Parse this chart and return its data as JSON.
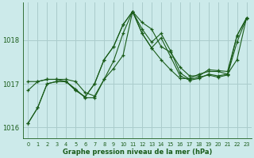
{
  "xlabel": "Graphe pression niveau de la mer (hPa)",
  "bg_color": "#cceaea",
  "grid_color": "#aacccc",
  "line_color": "#1a5c1a",
  "ylim": [
    1015.75,
    1018.85
  ],
  "yticks": [
    1016,
    1017,
    1018
  ],
  "xlim": [
    -0.5,
    23.5
  ],
  "xticks": [
    0,
    1,
    2,
    3,
    4,
    5,
    6,
    7,
    8,
    9,
    10,
    11,
    12,
    13,
    14,
    15,
    16,
    17,
    18,
    19,
    20,
    21,
    22,
    23
  ],
  "series": [
    [
      1016.1,
      1016.45,
      1017.0,
      1017.05,
      1017.05,
      1016.85,
      1016.7,
      1017.0,
      1017.55,
      1017.85,
      1018.35,
      1018.65,
      1018.25,
      1017.95,
      1018.15,
      1017.75,
      1017.25,
      1017.1,
      1017.15,
      1017.2,
      1017.15,
      1017.2,
      1017.95,
      1018.5
    ],
    [
      1016.85,
      1017.05,
      1017.1,
      1017.1,
      1017.1,
      1017.05,
      1016.8,
      1016.72,
      1017.1,
      1017.35,
      1017.65,
      1018.65,
      1018.4,
      1018.25,
      1017.85,
      1017.72,
      1017.38,
      1017.18,
      1017.18,
      1017.32,
      1017.3,
      1017.28,
      1018.1,
      1018.5
    ],
    [
      1017.05,
      1017.05,
      1017.1,
      1017.1,
      1017.05,
      1016.88,
      1016.68,
      1016.68,
      1017.1,
      1017.52,
      1018.15,
      1018.65,
      1018.15,
      1017.82,
      1017.55,
      1017.32,
      1017.12,
      1017.12,
      1017.22,
      1017.28,
      1017.28,
      1017.22,
      1017.55,
      1018.5
    ],
    [
      1016.1,
      1016.45,
      1017.0,
      1017.05,
      1017.05,
      1016.85,
      1016.7,
      1017.0,
      1017.55,
      1017.85,
      1018.35,
      1018.65,
      1018.15,
      1017.82,
      1018.05,
      1017.62,
      1017.18,
      1017.08,
      1017.12,
      1017.22,
      1017.18,
      1017.22,
      1018.1,
      1018.5
    ]
  ]
}
